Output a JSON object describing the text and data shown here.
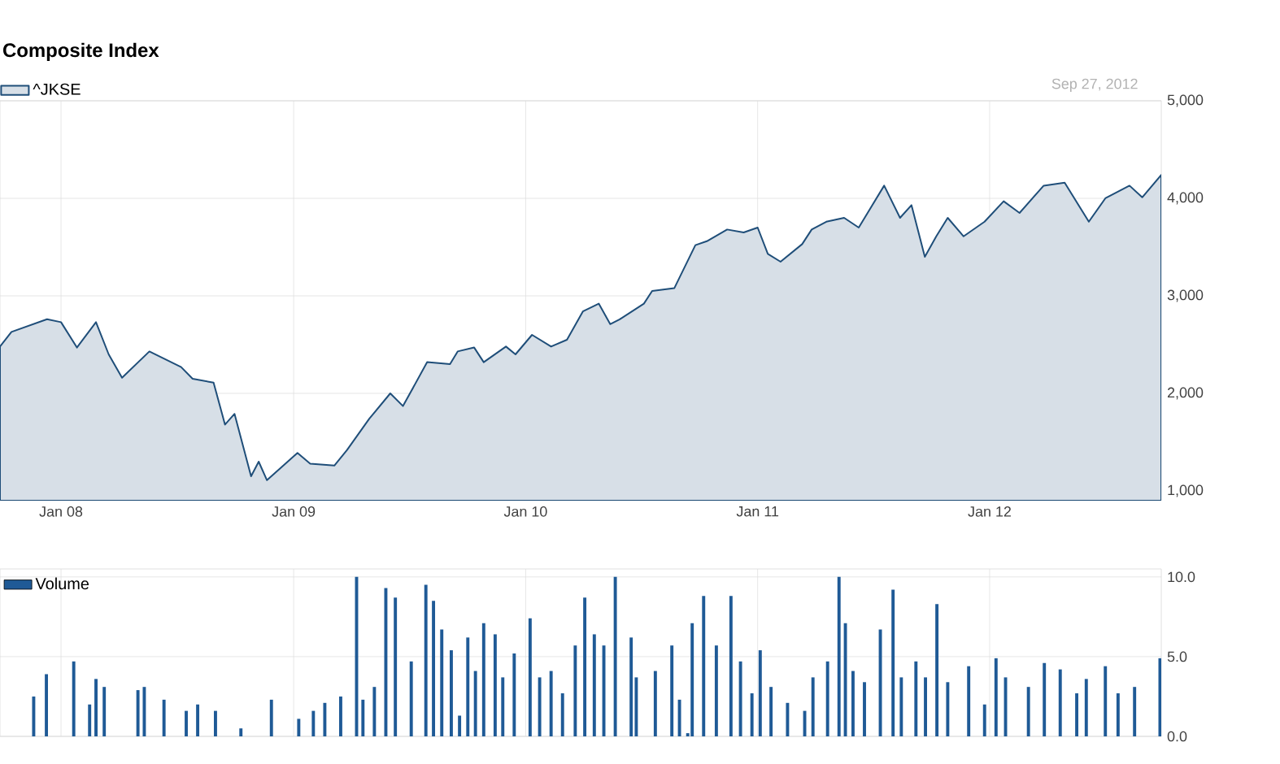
{
  "chart_data": [
    {
      "type": "area",
      "title": "Composite Index",
      "legend": "top left",
      "grid": true,
      "annotations": [
        "Sep 27, 2012"
      ],
      "xlim": [
        "2007-09-27",
        "2012-09-27"
      ],
      "xticks": [
        {
          "value": "2008-01-01",
          "label": "Jan 08"
        },
        {
          "value": "2009-01-01",
          "label": "Jan 09"
        },
        {
          "value": "2010-01-01",
          "label": "Jan 10"
        },
        {
          "value": "2011-01-01",
          "label": "Jan 11"
        },
        {
          "value": "2012-01-01",
          "label": "Jan 12"
        }
      ],
      "ylim": [
        900,
        5000
      ],
      "yticks": [
        {
          "value": 1000,
          "label": "1,000"
        },
        {
          "value": 2000,
          "label": "2,000"
        },
        {
          "value": 3000,
          "label": "3,000"
        },
        {
          "value": 4000,
          "label": "4,000"
        },
        {
          "value": 5000,
          "label": "5,000"
        }
      ],
      "series": [
        {
          "name": "^JKSE",
          "color": "#1f4e79",
          "x": [
            "2007-09-27",
            "2007-10-15",
            "2007-12-10",
            "2008-01-01",
            "2008-01-26",
            "2008-02-25",
            "2008-03-16",
            "2008-04-06",
            "2008-05-19",
            "2008-07-08",
            "2008-07-26",
            "2008-08-28",
            "2008-09-15",
            "2008-09-30",
            "2008-10-26",
            "2008-11-07",
            "2008-11-20",
            "2009-01-07",
            "2009-01-27",
            "2009-03-06",
            "2009-03-26",
            "2009-04-30",
            "2009-06-02",
            "2009-06-22",
            "2009-07-30",
            "2009-09-04",
            "2009-09-16",
            "2009-10-12",
            "2009-10-27",
            "2009-12-01",
            "2009-12-16",
            "2010-01-11",
            "2010-02-10",
            "2010-03-07",
            "2010-04-01",
            "2010-04-26",
            "2010-05-14",
            "2010-05-29",
            "2010-07-06",
            "2010-07-19",
            "2010-08-23",
            "2010-09-25",
            "2010-10-13",
            "2010-11-14",
            "2010-12-10",
            "2011-01-01",
            "2011-01-17",
            "2011-02-06",
            "2011-03-12",
            "2011-03-27",
            "2011-04-19",
            "2011-05-17",
            "2011-06-09",
            "2011-07-19",
            "2011-08-13",
            "2011-08-31",
            "2011-09-21",
            "2011-10-09",
            "2011-10-27",
            "2011-11-21",
            "2011-12-24",
            "2012-01-23",
            "2012-02-17",
            "2012-03-26",
            "2012-04-28",
            "2012-06-05",
            "2012-07-01",
            "2012-08-08",
            "2012-08-28",
            "2012-09-27"
          ],
          "values": [
            2480,
            2630,
            2760,
            2730,
            2470,
            2730,
            2400,
            2160,
            2430,
            2270,
            2150,
            2110,
            1680,
            1790,
            1150,
            1300,
            1110,
            1390,
            1280,
            1260,
            1420,
            1740,
            2000,
            1870,
            2320,
            2300,
            2430,
            2470,
            2320,
            2480,
            2400,
            2600,
            2480,
            2550,
            2840,
            2920,
            2710,
            2760,
            2920,
            3050,
            3080,
            3520,
            3560,
            3680,
            3650,
            3700,
            3430,
            3350,
            3530,
            3680,
            3760,
            3800,
            3700,
            4130,
            3800,
            3930,
            3400,
            3610,
            3800,
            3610,
            3760,
            3970,
            3850,
            4130,
            4160,
            3760,
            4000,
            4130,
            4010,
            4240
          ]
        }
      ]
    },
    {
      "type": "bar",
      "legend": "top left",
      "grid": true,
      "tick_labels": "y",
      "xlim": [
        "2007-09-27",
        "2012-09-27"
      ],
      "xticks": [
        {
          "value": "2008-01-01",
          "label": null
        },
        {
          "value": "2009-01-01",
          "label": null
        },
        {
          "value": "2010-01-01",
          "label": null
        },
        {
          "value": "2011-01-01",
          "label": null
        },
        {
          "value": "2012-01-01",
          "label": null
        }
      ],
      "ylim": [
        0,
        10.5
      ],
      "yticks": [
        {
          "value": 0,
          "label": "0.0"
        },
        {
          "value": 5,
          "label": "5.0"
        },
        {
          "value": 10,
          "label": "10.0"
        }
      ],
      "series": [
        {
          "name": "Volume",
          "color": "#1f5a96",
          "x": [
            "2007-11-19",
            "2007-12-09",
            "2008-01-21",
            "2008-02-15",
            "2008-02-25",
            "2008-03-09",
            "2008-05-01",
            "2008-05-11",
            "2008-06-11",
            "2008-07-16",
            "2008-08-03",
            "2008-08-31",
            "2008-10-10",
            "2008-11-27",
            "2009-01-09",
            "2009-02-01",
            "2009-02-19",
            "2009-03-16",
            "2009-04-10",
            "2009-04-20",
            "2009-05-08",
            "2009-05-26",
            "2009-06-10",
            "2009-07-05",
            "2009-07-28",
            "2009-08-09",
            "2009-08-22",
            "2009-09-06",
            "2009-09-19",
            "2009-10-02",
            "2009-10-14",
            "2009-10-27",
            "2009-11-14",
            "2009-11-26",
            "2009-12-14",
            "2010-01-08",
            "2010-01-23",
            "2010-02-10",
            "2010-02-28",
            "2010-03-20",
            "2010-04-04",
            "2010-04-19",
            "2010-05-04",
            "2010-05-22",
            "2010-06-16",
            "2010-06-24",
            "2010-07-24",
            "2010-08-19",
            "2010-08-31",
            "2010-09-13",
            "2010-09-20",
            "2010-10-08",
            "2010-10-28",
            "2010-11-20",
            "2010-12-05",
            "2010-12-23",
            "2011-01-05",
            "2011-01-22",
            "2011-02-17",
            "2011-03-16",
            "2011-03-29",
            "2011-04-21",
            "2011-05-09",
            "2011-05-19",
            "2011-05-31",
            "2011-06-18",
            "2011-07-13",
            "2011-08-02",
            "2011-08-15",
            "2011-09-07",
            "2011-09-22",
            "2011-10-10",
            "2011-10-27",
            "2011-11-29",
            "2011-12-24",
            "2012-01-11",
            "2012-01-26",
            "2012-03-02",
            "2012-03-27",
            "2012-04-21",
            "2012-05-17",
            "2012-06-01",
            "2012-07-01",
            "2012-07-21",
            "2012-08-16",
            "2012-09-25"
          ],
          "values": [
            2.5,
            3.9,
            4.7,
            2.0,
            3.6,
            3.1,
            2.9,
            3.1,
            2.3,
            1.6,
            2.0,
            1.6,
            0.5,
            2.3,
            1.1,
            1.6,
            2.1,
            2.5,
            10.0,
            2.3,
            3.1,
            9.3,
            8.7,
            4.7,
            9.5,
            8.5,
            6.7,
            5.4,
            1.3,
            6.2,
            4.1,
            7.1,
            6.4,
            3.7,
            5.2,
            7.4,
            3.7,
            4.1,
            2.7,
            5.7,
            8.7,
            6.4,
            5.7,
            10.0,
            6.2,
            3.7,
            4.1,
            5.7,
            2.3,
            0.2,
            7.1,
            8.8,
            5.7,
            8.8,
            4.7,
            2.7,
            5.4,
            3.1,
            2.1,
            1.6,
            3.7,
            4.7,
            10.0,
            7.1,
            4.1,
            3.4,
            6.7,
            9.2,
            3.7,
            4.7,
            3.7,
            8.3,
            3.4,
            4.4,
            2.0,
            4.9,
            3.7,
            3.1,
            4.6,
            4.2,
            2.7,
            3.6,
            4.4,
            2.7,
            3.1,
            4.9
          ]
        }
      ]
    }
  ]
}
